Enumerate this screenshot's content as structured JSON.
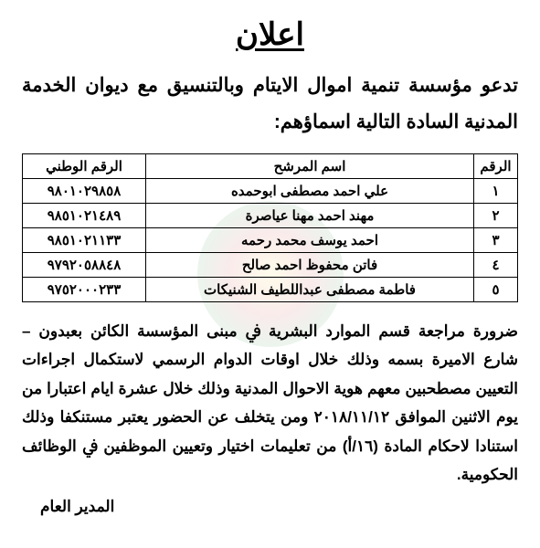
{
  "title": "اعلان",
  "intro": "تدعو مؤسسة تنمية اموال الايتام وبالتنسيق مع ديوان الخدمة المدنية السادة التالية اسماؤهم:",
  "table": {
    "columns": [
      "الرقم",
      "اسم المرشح",
      "الرقم الوطني"
    ],
    "rows": [
      {
        "num": "١",
        "name": "علي احمد مصطفى ابوحمده",
        "id": "٩٨٠١٠٢٩٨٥٨"
      },
      {
        "num": "٢",
        "name": "مهند احمد مهنا عياصرة",
        "id": "٩٨٥١٠٢١٤٨٩"
      },
      {
        "num": "٣",
        "name": "احمد يوسف محمد رحمه",
        "id": "٩٨٥١٠٢١١٣٣"
      },
      {
        "num": "٤",
        "name": "فاتن محفوظ احمد صاﻟﺢ",
        "id": "٩٧٩٢٠٥٨٨٤٨"
      },
      {
        "num": "٥",
        "name": "فاطمة مصطفى عبداللطيف الشنيكات",
        "id": "٩٧٥٢٠٠٠٢٣٣"
      }
    ],
    "header_fontsize": 15,
    "cell_fontsize": 15,
    "border_color": "#000000",
    "col_widths": {
      "num": 48,
      "id": 135
    }
  },
  "body": "ضرورة مراجعة قسم الموارد البشرية ﰲ مبنى المؤسسة الكائن بعبدون – شارع الاميرة بسمه وذلك خلال اوقات الدوام الرسمي لاستكمال اجراءات التعيين مصطحبين معهم هوية الاحوال المدنية وذلك خلال عشرة ايام اعتبارا من يوم الاثنين الموافق ٢٠١٨/١١/١٢ ومن يتخلف عن الحضور يعتبر مستنكفا وذلك استنادا لاحكام المادة (١٦/أ) من تعليمات اختيار وتعيين الموظفين ﰲ الوظائف الحكومية.",
  "signature": "المدير العام",
  "colors": {
    "text": "#000000",
    "background": "#ffffff"
  },
  "fonts": {
    "title_size": 34,
    "intro_size": 21,
    "body_size": 17,
    "signature_size": 17
  }
}
